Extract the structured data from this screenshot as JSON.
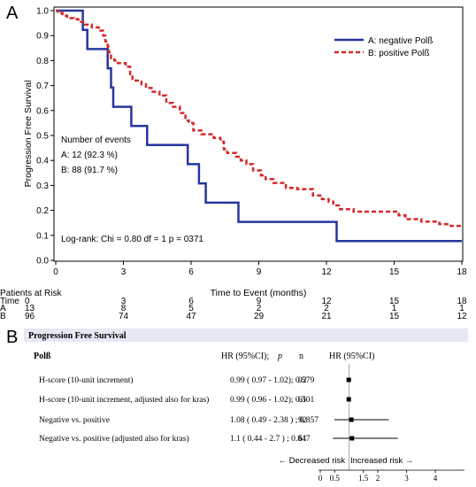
{
  "panel_a_label": "A",
  "panel_b_label": "B",
  "chart_data": [
    {
      "type": "line",
      "subtype": "kaplan-meier",
      "xlabel": "Time to Event (months)",
      "ylabel": "Progression Free Survival",
      "xlim": [
        0,
        18
      ],
      "ylim": [
        0,
        1
      ],
      "xticks": [
        "0",
        "3",
        "6",
        "9",
        "12",
        "15",
        "18"
      ],
      "yticks": [
        "0.0",
        "0.1",
        "0.2",
        "0.3",
        "0.4",
        "0.5",
        "0.6",
        "0.7",
        "0.8",
        "0.9",
        "1.0"
      ],
      "legend": {
        "placement": "top-right"
      },
      "series": [
        {
          "name": "A: negative Polß",
          "color": "#2536a0",
          "dash": "solid",
          "steps": [
            [
              0,
              1.0
            ],
            [
              1.2,
              1.0
            ],
            [
              1.2,
              0.923
            ],
            [
              1.4,
              0.923
            ],
            [
              1.4,
              0.846
            ],
            [
              2.3,
              0.846
            ],
            [
              2.3,
              0.769
            ],
            [
              2.45,
              0.769
            ],
            [
              2.45,
              0.692
            ],
            [
              2.55,
              0.692
            ],
            [
              2.55,
              0.615
            ],
            [
              3.35,
              0.615
            ],
            [
              3.35,
              0.538
            ],
            [
              4.05,
              0.538
            ],
            [
              4.05,
              0.462
            ],
            [
              5.85,
              0.462
            ],
            [
              5.85,
              0.385
            ],
            [
              6.35,
              0.385
            ],
            [
              6.35,
              0.308
            ],
            [
              6.65,
              0.308
            ],
            [
              6.65,
              0.231
            ],
            [
              8.1,
              0.231
            ],
            [
              8.1,
              0.154
            ],
            [
              12.45,
              0.154
            ],
            [
              12.45,
              0.077
            ],
            [
              18,
              0.077
            ]
          ]
        },
        {
          "name": "B: positive Polß",
          "color": "#d42a2a",
          "dash": "dashed",
          "steps": [
            [
              0,
              1.0
            ],
            [
              0.1,
              0.99
            ],
            [
              0.3,
              0.98
            ],
            [
              0.5,
              0.97
            ],
            [
              0.8,
              0.966
            ],
            [
              1.0,
              0.955
            ],
            [
              1.3,
              0.944
            ],
            [
              1.6,
              0.933
            ],
            [
              1.9,
              0.92
            ],
            [
              2.1,
              0.9
            ],
            [
              2.2,
              0.877
            ],
            [
              2.3,
              0.855
            ],
            [
              2.35,
              0.833
            ],
            [
              2.45,
              0.81
            ],
            [
              2.6,
              0.8
            ],
            [
              2.75,
              0.79
            ],
            [
              3.1,
              0.775
            ],
            [
              3.3,
              0.745
            ],
            [
              3.4,
              0.72
            ],
            [
              3.8,
              0.705
            ],
            [
              4.0,
              0.69
            ],
            [
              4.3,
              0.675
            ],
            [
              4.6,
              0.66
            ],
            [
              4.9,
              0.63
            ],
            [
              5.2,
              0.615
            ],
            [
              5.5,
              0.59
            ],
            [
              5.75,
              0.56
            ],
            [
              5.9,
              0.55
            ],
            [
              6.1,
              0.52
            ],
            [
              6.45,
              0.505
            ],
            [
              7.0,
              0.49
            ],
            [
              7.3,
              0.475
            ],
            [
              7.45,
              0.445
            ],
            [
              7.6,
              0.43
            ],
            [
              8.0,
              0.415
            ],
            [
              8.2,
              0.4
            ],
            [
              8.45,
              0.385
            ],
            [
              8.75,
              0.36
            ],
            [
              9.1,
              0.34
            ],
            [
              9.3,
              0.325
            ],
            [
              9.65,
              0.31
            ],
            [
              10.2,
              0.29
            ],
            [
              10.7,
              0.285
            ],
            [
              11.4,
              0.26
            ],
            [
              11.8,
              0.245
            ],
            [
              12.1,
              0.235
            ],
            [
              12.3,
              0.22
            ],
            [
              12.6,
              0.205
            ],
            [
              13.2,
              0.195
            ],
            [
              15.2,
              0.18
            ],
            [
              15.5,
              0.165
            ],
            [
              16.2,
              0.155
            ],
            [
              17.0,
              0.145
            ],
            [
              17.5,
              0.138
            ],
            [
              18,
              0.138
            ]
          ]
        }
      ],
      "annotations": {
        "events_title": "Number of events",
        "events_a": "A: 12 (92.3 %)",
        "events_b": "B: 88 (91.7 %)",
        "logrank": "Log-rank: Chi = 0.80  df = 1  p = 0371"
      },
      "risk_table": {
        "title": "Patients at Risk",
        "row_labels": [
          "Time",
          "A",
          "B"
        ],
        "time": [
          "0",
          "3",
          "6",
          "9",
          "12",
          "15",
          "18"
        ],
        "A": [
          "13",
          "8",
          "5",
          "2",
          "2",
          "1",
          "1"
        ],
        "B": [
          "96",
          "74",
          "47",
          "29",
          "21",
          "15",
          "12"
        ]
      }
    },
    {
      "type": "forest",
      "title": "Progression Free Survival",
      "headers": {
        "variable": "Polß",
        "hr_text": "HR (95%CI);",
        "p": "p",
        "n": "n",
        "plot": "HR (95%CI)"
      },
      "rows": [
        {
          "label": "H-score (10-unit increment)",
          "hr_text": "0.99 ( 0.97 - 1.02); 0.579",
          "n": "92",
          "hr": 0.99,
          "lo": 0.97,
          "hi": 1.02
        },
        {
          "label": "H-score (10-unit increment, adjusted also for kras)",
          "hr_text": "0.99 ( 0.96 - 1.02); 0.501",
          "n": "61",
          "hr": 0.99,
          "lo": 0.96,
          "hi": 1.02
        },
        {
          "label": "Negative vs. positive",
          "hr_text": "1.08 ( 0.49 - 2.38 ) ; 0.857",
          "n": "92",
          "hr": 1.08,
          "lo": 0.49,
          "hi": 2.38
        },
        {
          "label": "Negative vs. positive (adjusted also for kras)",
          "hr_text": "1.1 ( 0.44 - 2.7 ) ; 0.847",
          "n": "61",
          "hr": 1.1,
          "lo": 0.44,
          "hi": 2.7
        }
      ],
      "reference_line": 1,
      "decreased_label": "← Decreased risk",
      "increased_label": "Increased risk →",
      "xticks": [
        {
          "value": 0,
          "label": "0"
        },
        {
          "value": 0.5,
          "label": "0.5"
        },
        {
          "value": 1.5,
          "label": "1.5"
        },
        {
          "value": 2,
          "label": "2"
        },
        {
          "value": 3,
          "label": "3"
        },
        {
          "value": 4,
          "label": "4"
        }
      ]
    }
  ]
}
